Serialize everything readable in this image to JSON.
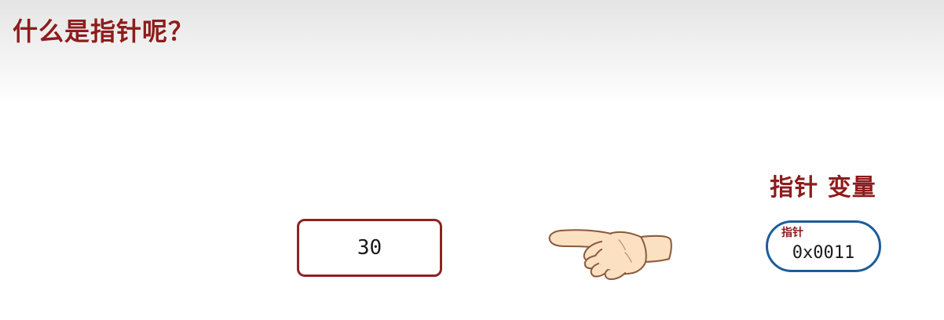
{
  "page": {
    "title": "什么是指针呢？"
  },
  "variable": {
    "value": "30"
  },
  "pointer": {
    "title": "指针 变量",
    "label": "指针",
    "value": "0x0011"
  },
  "icons": {
    "hand": "pointing-hand-icon"
  },
  "colors": {
    "title_red": "#8e1c1c",
    "box_border_red": "#8e2323",
    "pill_border_blue": "#1d5c9b",
    "hand_skin": "#fbe0c2"
  }
}
